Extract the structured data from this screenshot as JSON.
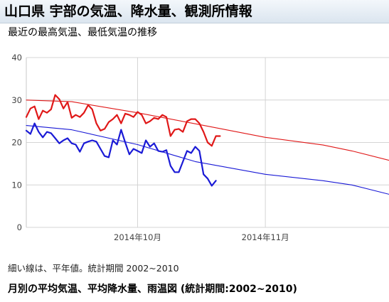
{
  "header": {
    "title": "山口県 宇部の気温、降水量、観測所情報"
  },
  "chart_section": {
    "title": "最近の最高気温、最低気温の推移",
    "note": "細い線は、平年値。統計期間 2002~2010"
  },
  "next_section": {
    "title": "月別の平均気温、平均降水量、雨温図 (統計期間:2002~2010)"
  },
  "colors": {
    "max_series": "#e01818",
    "min_series": "#1a1ad6",
    "grid": "#d4d4d4",
    "header_bg": "#e6edf4"
  },
  "chart_data": {
    "type": "line",
    "title": "最近の最高気温、最低気温の推移",
    "x_unit": "day",
    "x_range": [
      "2014-09-04",
      "2014-12-01"
    ],
    "x_ticks": [
      {
        "date": "2014-10-01",
        "label": "2014年10月"
      },
      {
        "date": "2014-11-01",
        "label": "2014年11月"
      }
    ],
    "ylim": [
      0,
      40
    ],
    "yticks": [
      0,
      10,
      20,
      30,
      40
    ],
    "grid": true,
    "legend": "none",
    "series": [
      {
        "role": "daily_max",
        "color": "#e01818",
        "weight": "thick",
        "x_start": "2014-09-04",
        "values": [
          26.0,
          28.0,
          28.5,
          25.5,
          27.5,
          27.0,
          27.8,
          31.2,
          30.2,
          28.0,
          29.5,
          25.8,
          26.5,
          26.0,
          27.0,
          28.8,
          27.8,
          24.5,
          22.8,
          23.2,
          24.8,
          25.5,
          26.5,
          24.5,
          26.8,
          26.5,
          26.0,
          27.2,
          26.5,
          24.5,
          25.0,
          25.8,
          25.5,
          26.5,
          26.0,
          21.5,
          23.0,
          23.2,
          22.5,
          25.0,
          25.5,
          25.5,
          24.5,
          22.5,
          20.0,
          19.2,
          21.5,
          21.5
        ]
      },
      {
        "role": "daily_min",
        "color": "#1a1ad6",
        "weight": "thick",
        "x_start": "2014-09-04",
        "values": [
          22.8,
          22.0,
          24.5,
          22.5,
          21.2,
          22.5,
          22.2,
          21.0,
          19.8,
          20.5,
          21.0,
          19.8,
          19.5,
          17.8,
          19.8,
          20.2,
          20.5,
          20.2,
          18.5,
          16.8,
          16.5,
          20.5,
          19.5,
          23.0,
          20.0,
          17.2,
          18.5,
          18.0,
          17.5,
          20.5,
          19.0,
          19.8,
          18.0,
          17.8,
          18.2,
          14.5,
          13.0,
          13.0,
          15.5,
          18.0,
          17.5,
          19.0,
          18.0,
          12.5,
          11.5,
          9.8,
          11.0
        ]
      },
      {
        "role": "normal_max",
        "color": "#e01818",
        "weight": "thin",
        "points": [
          {
            "x": "2014-09-04",
            "y": 30.0
          },
          {
            "x": "2014-09-15",
            "y": 29.6
          },
          {
            "x": "2014-10-01",
            "y": 27.0
          },
          {
            "x": "2014-10-15",
            "y": 24.4
          },
          {
            "x": "2014-11-01",
            "y": 21.2
          },
          {
            "x": "2014-11-15",
            "y": 19.4
          },
          {
            "x": "2014-11-22",
            "y": 18.0
          },
          {
            "x": "2014-12-01",
            "y": 15.8
          }
        ]
      },
      {
        "role": "normal_min",
        "color": "#1a1ad6",
        "weight": "thin",
        "points": [
          {
            "x": "2014-09-04",
            "y": 24.0
          },
          {
            "x": "2014-09-15",
            "y": 23.0
          },
          {
            "x": "2014-10-01",
            "y": 19.5
          },
          {
            "x": "2014-10-15",
            "y": 15.5
          },
          {
            "x": "2014-11-01",
            "y": 12.5
          },
          {
            "x": "2014-11-15",
            "y": 11.0
          },
          {
            "x": "2014-11-22",
            "y": 10.0
          },
          {
            "x": "2014-12-01",
            "y": 7.8
          }
        ]
      }
    ]
  }
}
